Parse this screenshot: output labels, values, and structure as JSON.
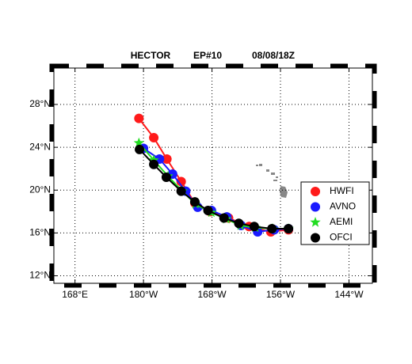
{
  "chart_data": {
    "type": "line",
    "title": "HECTOR",
    "storm_id": "EP#10",
    "datetime": "08/08/18Z",
    "xlim": [
      164.3,
      220.1
    ],
    "ylim": [
      11.3,
      31.4
    ],
    "xticks": [
      {
        "value": 168,
        "label": "168°E"
      },
      {
        "value": 180,
        "label": "180°W"
      },
      {
        "value": 192,
        "label": "168°W"
      },
      {
        "value": 204,
        "label": "156°W"
      },
      {
        "value": 216,
        "label": "144°W"
      }
    ],
    "yticks": [
      {
        "value": 12,
        "label": "12°N"
      },
      {
        "value": 16,
        "label": "16°N"
      },
      {
        "value": 20,
        "label": "20°N"
      },
      {
        "value": 24,
        "label": "24°N"
      },
      {
        "value": 28,
        "label": "28°N"
      }
    ],
    "grid": true,
    "legend": "right",
    "series": [
      {
        "name": "HWFI",
        "color": "#ff1a1a",
        "marker": "circle",
        "x": [
          179.2,
          181.8,
          184.1,
          186.6,
          189.0,
          191.7,
          194.9,
          198.5,
          202.3,
          205.4
        ],
        "values": [
          26.7,
          24.9,
          22.9,
          20.8,
          18.8,
          18.0,
          17.4,
          16.6,
          16.1,
          16.3
        ]
      },
      {
        "name": "AVNO",
        "color": "#1a1aff",
        "marker": "circle",
        "x": [
          180.0,
          182.8,
          185.1,
          187.4,
          189.5,
          191.9,
          194.6,
          197.1,
          200.0,
          202.9,
          205.4
        ],
        "values": [
          23.9,
          22.9,
          21.5,
          19.9,
          18.4,
          18.1,
          17.5,
          16.7,
          16.1,
          16.3,
          16.4
        ]
      },
      {
        "name": "AEMI",
        "color": "#22dd22",
        "marker": "star",
        "x": [
          179.2,
          181.8,
          184.3,
          186.8,
          189.1,
          191.9,
          194.5,
          197.0,
          199.6,
          202.6,
          205.4
        ],
        "values": [
          24.4,
          22.8,
          21.3,
          19.9,
          18.7,
          17.9,
          17.3,
          16.7,
          16.5,
          16.4,
          16.4
        ]
      },
      {
        "name": "OFCI",
        "color": "#000000",
        "marker": "circle",
        "x": [
          179.3,
          181.8,
          184.0,
          186.6,
          189.0,
          191.3,
          194.1,
          196.7,
          199.4,
          202.5,
          205.4
        ],
        "values": [
          23.8,
          22.4,
          21.2,
          19.9,
          18.9,
          18.1,
          17.4,
          16.9,
          16.6,
          16.4,
          16.4
        ]
      }
    ]
  }
}
